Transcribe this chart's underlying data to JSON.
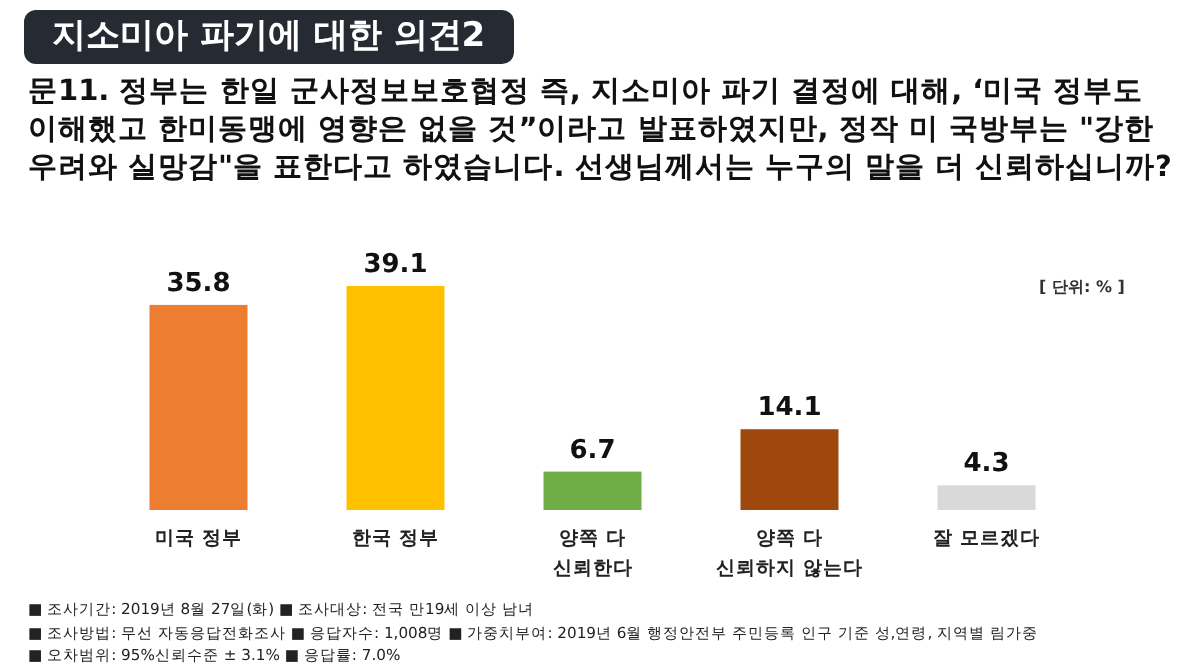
{
  "chart_data": {
    "type": "bar",
    "title": "지소미아 파기에 대한 의견2",
    "subtitle": "문11. 정부는 한일 군사정보보호협정 즉, 지소미아 파기 결정에 대해, ‘미국 정부도 이해했고 한미동맹에 영향은 없을 것”이라고 발표하였지만, 정작 미 국방부는 \"강한 우려와 실망감\"을 표한다고 하였습니다. 선생님께서는 누구의 말을 더 신뢰하십니까?",
    "categories": [
      "미국 정부",
      "한국 정부",
      "양쪽 다\n신뢰한다",
      "양쪽 다\n신뢰하지 않는다",
      "잘 모르겠다"
    ],
    "values": [
      35.8,
      39.1,
      6.7,
      14.1,
      4.3
    ],
    "colors": [
      "#ed7d31",
      "#ffc000",
      "#70ad47",
      "#9e480e",
      "#d9d9d9"
    ],
    "data_labels": true,
    "annotations": [
      "[ 단위: % ]",
      "■ 조사기간: 2019년 8월 27일(화)  ■ 조사대상: 전국 만19세 이상 남녀",
      "■ 조사방법: 무선 자동응답전화조사  ■ 응답자수: 1,008명 ■ 가중치부여: 2019년 6월 행정안전부 주민등록 인구 기준 성,연령, 지역별 림가중",
      "■ 오차범위: 95%신뢰수준 ± 3.1%  ■ 응답률: 7.0%"
    ]
  }
}
